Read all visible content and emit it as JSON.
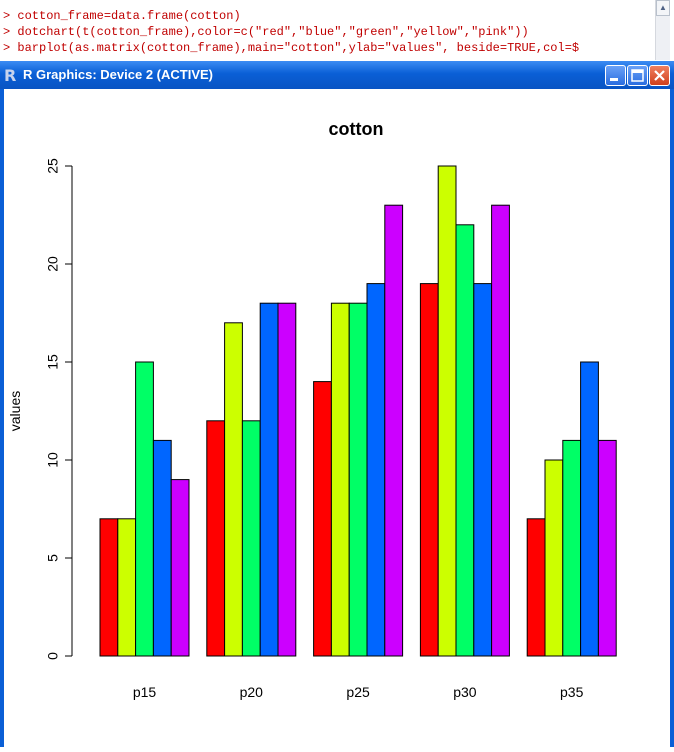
{
  "console": {
    "lines": [
      "> cotton_frame=data.frame(cotton)",
      "> dotchart(t(cotton_frame),color=c(\"red\",\"blue\",\"green\",\"yellow\",\"pink\"))",
      "> barplot(as.matrix(cotton_frame),main=\"cotton\",ylab=\"values\", beside=TRUE,col=$"
    ]
  },
  "window": {
    "title": "R Graphics: Device 2 (ACTIVE)",
    "icon": "r-logo-icon",
    "buttons": [
      "minimize-icon",
      "maximize-icon",
      "close-icon"
    ]
  },
  "chart_data": {
    "type": "bar",
    "title": "cotton",
    "xlabel": "",
    "ylabel": "values",
    "ylim": [
      0,
      25
    ],
    "yticks": [
      "0",
      "5",
      "10",
      "15",
      "20",
      "25"
    ],
    "categories": [
      "p15",
      "p20",
      "p25",
      "p30",
      "p35"
    ],
    "series": [
      {
        "color": "#ff0000",
        "values": [
          7,
          12,
          14,
          19,
          7
        ]
      },
      {
        "color": "#ccff00",
        "values": [
          7,
          17,
          18,
          25,
          10
        ]
      },
      {
        "color": "#00ff66",
        "values": [
          15,
          12,
          18,
          22,
          11
        ]
      },
      {
        "color": "#0066ff",
        "values": [
          11,
          18,
          19,
          19,
          15
        ]
      },
      {
        "color": "#cc00ff",
        "values": [
          9,
          18,
          23,
          23,
          11
        ]
      }
    ],
    "grid": false,
    "legend": "none"
  }
}
